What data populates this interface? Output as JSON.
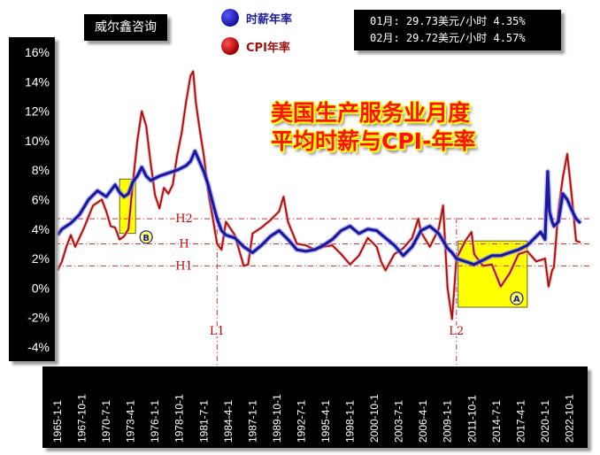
{
  "brand": "威尔鑫咨询",
  "title_line1": "美国生产服务业月度",
  "title_line2": "平均时薪与CPI-年率",
  "info_line1": "01月: 29.73美元/小时 4.35%",
  "info_line2": "02月: 29.72美元/小时 4.57%",
  "colors": {
    "wage": "#1a1a9a",
    "cpi": "#a01010",
    "highlight": "#ffff00",
    "background": "#ffffff"
  },
  "chart_data": {
    "type": "line",
    "y_ticks": [
      "16%",
      "14%",
      "12%",
      "10%",
      "8%",
      "6%",
      "4%",
      "2%",
      "0%",
      "-2%",
      "-4%"
    ],
    "ylim": [
      -4,
      16
    ],
    "x_ticks": [
      "1965-1-1",
      "1967-10-1",
      "1970-7-1",
      "1973-4-1",
      "1976-1-1",
      "1978-10-1",
      "1981-7-1",
      "1984-4-1",
      "1987-1-1",
      "1989-10-1",
      "1992-7-1",
      "1995-4-1",
      "1998-1-1",
      "2000-10-1",
      "2003-7-1",
      "2006-4-1",
      "2009-1-1",
      "2011-10-1",
      "2014-7-1",
      "2017-4-1",
      "2020-1-1",
      "2022-10-1"
    ],
    "xlim": [
      1965,
      2024.2
    ],
    "series": [
      {
        "name": "时薪年率",
        "x": [
          1965.0,
          1965.5,
          1966.5,
          1967.5,
          1968.5,
          1969.5,
          1970.5,
          1971.5,
          1972.0,
          1972.5,
          1973.0,
          1973.5,
          1974.0,
          1974.5,
          1975.0,
          1975.5,
          1976.5,
          1977.5,
          1978.5,
          1979.5,
          1980.0,
          1980.5,
          1981.0,
          1981.5,
          1982.0,
          1982.5,
          1983.0,
          1983.5,
          1984.0,
          1985.0,
          1986.0,
          1987.0,
          1988.0,
          1989.0,
          1990.0,
          1991.0,
          1992.0,
          1993.0,
          1994.0,
          1995.0,
          1996.0,
          1997.0,
          1998.0,
          1999.0,
          2000.0,
          2001.0,
          2002.0,
          2003.0,
          2004.0,
          2005.0,
          2006.0,
          2007.0,
          2008.0,
          2009.0,
          2009.5,
          2010.0,
          2011.0,
          2012.0,
          2013.0,
          2014.0,
          2015.0,
          2016.0,
          2017.0,
          2018.0,
          2018.5,
          2019.0,
          2019.5,
          2020.0,
          2020.3,
          2020.5,
          2020.8,
          2021.0,
          2021.5,
          2022.0,
          2022.5,
          2023.0,
          2023.5,
          2024.0
        ],
        "values": [
          3.6,
          4.0,
          4.4,
          5.0,
          6.0,
          6.6,
          6.2,
          7.0,
          6.5,
          6.2,
          6.4,
          7.2,
          7.6,
          8.2,
          7.6,
          7.3,
          7.6,
          7.8,
          8.0,
          8.3,
          8.6,
          9.3,
          8.6,
          7.9,
          7.0,
          5.8,
          4.7,
          3.9,
          3.6,
          3.4,
          2.8,
          2.4,
          2.9,
          3.5,
          3.9,
          3.3,
          2.6,
          2.5,
          2.6,
          2.9,
          3.3,
          3.9,
          4.2,
          3.7,
          4.0,
          3.9,
          3.4,
          2.9,
          2.2,
          2.8,
          3.9,
          4.2,
          3.7,
          2.7,
          2.4,
          2.0,
          1.8,
          1.6,
          1.9,
          2.2,
          2.2,
          2.4,
          2.6,
          2.9,
          3.2,
          3.5,
          3.8,
          3.3,
          7.9,
          5.2,
          4.5,
          4.2,
          4.5,
          6.4,
          6.0,
          5.3,
          4.7,
          4.4
        ]
      },
      {
        "name": "CPI年率",
        "x": [
          1965.0,
          1965.5,
          1966.0,
          1966.5,
          1967.0,
          1968.0,
          1969.0,
          1970.0,
          1970.5,
          1971.0,
          1971.5,
          1972.0,
          1972.5,
          1973.0,
          1973.5,
          1974.0,
          1974.5,
          1975.0,
          1975.5,
          1976.0,
          1976.5,
          1977.0,
          1977.5,
          1978.0,
          1978.5,
          1979.0,
          1979.5,
          1980.0,
          1980.3,
          1980.6,
          1981.0,
          1981.5,
          1982.0,
          1982.5,
          1983.0,
          1983.5,
          1984.0,
          1985.0,
          1986.0,
          1986.5,
          1987.0,
          1988.0,
          1989.0,
          1990.0,
          1990.5,
          1991.0,
          1992.0,
          1993.0,
          1994.0,
          1995.0,
          1996.0,
          1997.0,
          1998.0,
          1999.0,
          2000.0,
          2001.0,
          2001.5,
          2002.0,
          2003.0,
          2004.0,
          2005.0,
          2005.7,
          2006.0,
          2007.0,
          2008.0,
          2008.5,
          2009.0,
          2009.5,
          2010.0,
          2011.0,
          2011.7,
          2012.0,
          2013.0,
          2014.0,
          2015.0,
          2016.0,
          2017.0,
          2018.0,
          2019.0,
          2020.0,
          2020.4,
          2020.8,
          2021.0,
          2021.5,
          2022.0,
          2022.5,
          2023.0,
          2023.5,
          2024.0
        ],
        "values": [
          1.2,
          1.8,
          2.8,
          3.6,
          2.8,
          4.1,
          5.6,
          6.0,
          5.2,
          4.2,
          4.1,
          3.3,
          3.5,
          4.0,
          7.1,
          10.0,
          12.0,
          11.0,
          8.5,
          6.3,
          5.4,
          6.8,
          6.4,
          7.0,
          9.0,
          10.5,
          12.6,
          14.4,
          14.7,
          12.6,
          10.9,
          9.0,
          6.5,
          4.8,
          3.0,
          2.6,
          4.5,
          3.6,
          1.5,
          1.6,
          3.7,
          4.1,
          4.6,
          5.2,
          6.2,
          4.5,
          3.0,
          2.9,
          2.6,
          2.8,
          2.9,
          2.3,
          1.6,
          2.2,
          3.4,
          2.8,
          1.8,
          1.2,
          2.3,
          2.7,
          3.4,
          4.7,
          3.8,
          2.8,
          4.0,
          5.6,
          0.0,
          -2.1,
          2.0,
          3.2,
          3.8,
          2.3,
          1.5,
          1.6,
          0.1,
          1.0,
          2.3,
          2.5,
          1.8,
          2.0,
          0.1,
          1.2,
          1.4,
          5.3,
          7.5,
          9.1,
          6.3,
          3.2,
          3.1
        ]
      }
    ],
    "reference_lines": [
      {
        "label": "H2",
        "y": 4.7
      },
      {
        "label": "H",
        "y": 3.0
      },
      {
        "label": "H1",
        "y": 1.5
      }
    ],
    "vertical_markers": [
      {
        "label": "L1",
        "x": 1983.0
      },
      {
        "label": "L2",
        "x": 2010.0
      }
    ],
    "highlight_zones": [
      {
        "label": "B",
        "x": [
          1972.0,
          1973.8
        ],
        "y": [
          3.7,
          7.4
        ]
      },
      {
        "label": "A",
        "x": [
          2010.2,
          2018.0
        ],
        "y": [
          -1.3,
          3.2
        ]
      }
    ],
    "grid": false,
    "legend": "top"
  }
}
